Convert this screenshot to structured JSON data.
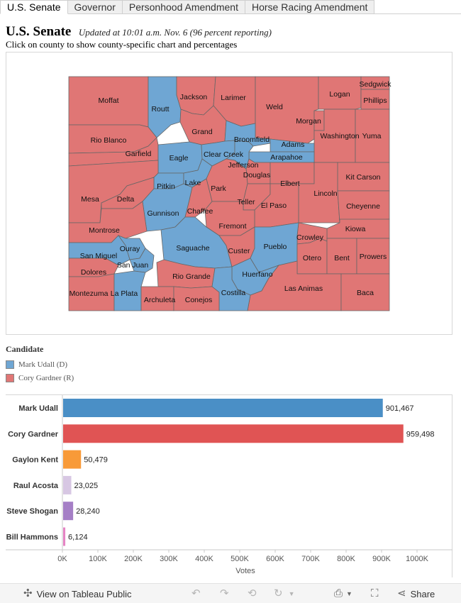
{
  "tabs": [
    {
      "label": "U.S. Senate",
      "active": true
    },
    {
      "label": "Governor",
      "active": false
    },
    {
      "label": "Personhood Amendment",
      "active": false
    },
    {
      "label": "Horse Racing Amendment",
      "active": false
    }
  ],
  "header": {
    "title": "U.S. Senate",
    "updated": "Updated at 10:01 a.m. Nov. 6 (96 percent reporting)",
    "subtitle": "Click on county to show county-specific chart and percentages"
  },
  "colors": {
    "udall": "#6fa6d3",
    "gardner": "#e07675",
    "border": "#666666"
  },
  "map": {
    "counties": [
      {
        "name": "Moffat",
        "party": "R"
      },
      {
        "name": "Routt",
        "party": "D"
      },
      {
        "name": "Jackson",
        "party": "R"
      },
      {
        "name": "Larimer",
        "party": "R"
      },
      {
        "name": "Weld",
        "party": "R"
      },
      {
        "name": "Logan",
        "party": "R"
      },
      {
        "name": "Sedgwick",
        "party": "R"
      },
      {
        "name": "Phillips",
        "party": "R"
      },
      {
        "name": "Morgan",
        "party": "R"
      },
      {
        "name": "Washington",
        "party": "R"
      },
      {
        "name": "Yuma",
        "party": "R"
      },
      {
        "name": "Rio Blanco",
        "party": "R"
      },
      {
        "name": "Grand",
        "party": "R"
      },
      {
        "name": "Broomfield",
        "party": "D"
      },
      {
        "name": "Adams",
        "party": "D"
      },
      {
        "name": "Garfield",
        "party": "R"
      },
      {
        "name": "Eagle",
        "party": "D"
      },
      {
        "name": "Clear Creek",
        "party": "D"
      },
      {
        "name": "Arapahoe",
        "party": "D"
      },
      {
        "name": "Jefferson",
        "party": "D"
      },
      {
        "name": "Douglas",
        "party": "R"
      },
      {
        "name": "Kit Carson",
        "party": "R"
      },
      {
        "name": "Pitkin",
        "party": "D"
      },
      {
        "name": "Lake",
        "party": "D"
      },
      {
        "name": "Elbert",
        "party": "R"
      },
      {
        "name": "Mesa",
        "party": "R"
      },
      {
        "name": "Delta",
        "party": "R"
      },
      {
        "name": "Park",
        "party": "R"
      },
      {
        "name": "Lincoln",
        "party": "R"
      },
      {
        "name": "Teller",
        "party": "R"
      },
      {
        "name": "El Paso",
        "party": "R"
      },
      {
        "name": "Cheyenne",
        "party": "R"
      },
      {
        "name": "Gunnison",
        "party": "D"
      },
      {
        "name": "Chaffee",
        "party": "R"
      },
      {
        "name": "Montrose",
        "party": "R"
      },
      {
        "name": "Fremont",
        "party": "R"
      },
      {
        "name": "Kiowa",
        "party": "R"
      },
      {
        "name": "Crowley",
        "party": "R"
      },
      {
        "name": "Ouray",
        "party": "D"
      },
      {
        "name": "Saguache",
        "party": "D"
      },
      {
        "name": "Custer",
        "party": "R"
      },
      {
        "name": "Pueblo",
        "party": "D"
      },
      {
        "name": "San Miguel",
        "party": "D"
      },
      {
        "name": "Otero",
        "party": "R"
      },
      {
        "name": "Bent",
        "party": "R"
      },
      {
        "name": "Prowers",
        "party": "R"
      },
      {
        "name": "San Juan",
        "party": "D"
      },
      {
        "name": "Dolores",
        "party": "R"
      },
      {
        "name": "Rio Grande",
        "party": "R"
      },
      {
        "name": "Huerfano",
        "party": "D"
      },
      {
        "name": "Montezuma",
        "party": "R"
      },
      {
        "name": "La Plata",
        "party": "D"
      },
      {
        "name": "Las Animas",
        "party": "R"
      },
      {
        "name": "Baca",
        "party": "R"
      },
      {
        "name": "Costilla",
        "party": "D"
      },
      {
        "name": "Archuleta",
        "party": "R"
      },
      {
        "name": "Conejos",
        "party": "R"
      }
    ]
  },
  "legend": {
    "title": "Candidate",
    "items": [
      {
        "label": "Mark Udall (D)",
        "color": "#6fa6d3"
      },
      {
        "label": "Cory Gardner (R)",
        "color": "#e07675"
      }
    ]
  },
  "chart_data": {
    "type": "bar",
    "orientation": "horizontal",
    "categories": [
      "Mark Udall",
      "Cory Gardner",
      "Gaylon Kent",
      "Raul Acosta",
      "Steve Shogan",
      "Bill Hammons"
    ],
    "values": [
      901467,
      959498,
      50479,
      23025,
      28240,
      6124
    ],
    "value_labels": [
      "901,467",
      "959,498",
      "50,479",
      "23,025",
      "28,240",
      "6,124"
    ],
    "colors": [
      "#4a8fc6",
      "#e05454",
      "#f89a38",
      "#d7c7e3",
      "#a57fc6",
      "#e584c4"
    ],
    "xlim": [
      0,
      1000000
    ],
    "ticks": [
      0,
      100000,
      200000,
      300000,
      400000,
      500000,
      600000,
      700000,
      800000,
      900000,
      1000000
    ],
    "tick_labels": [
      "0K",
      "100K",
      "200K",
      "300K",
      "400K",
      "500K",
      "600K",
      "700K",
      "800K",
      "900K",
      "1000K"
    ],
    "xlabel": "Votes",
    "ylabel": ""
  },
  "toolbar": {
    "view_label": "View on Tableau Public",
    "share_label": "Share",
    "icons": [
      "tableau-logo-icon",
      "undo-icon",
      "redo-icon",
      "revert-icon",
      "pause-icon",
      "download-icon",
      "fullscreen-icon",
      "share-icon"
    ]
  }
}
